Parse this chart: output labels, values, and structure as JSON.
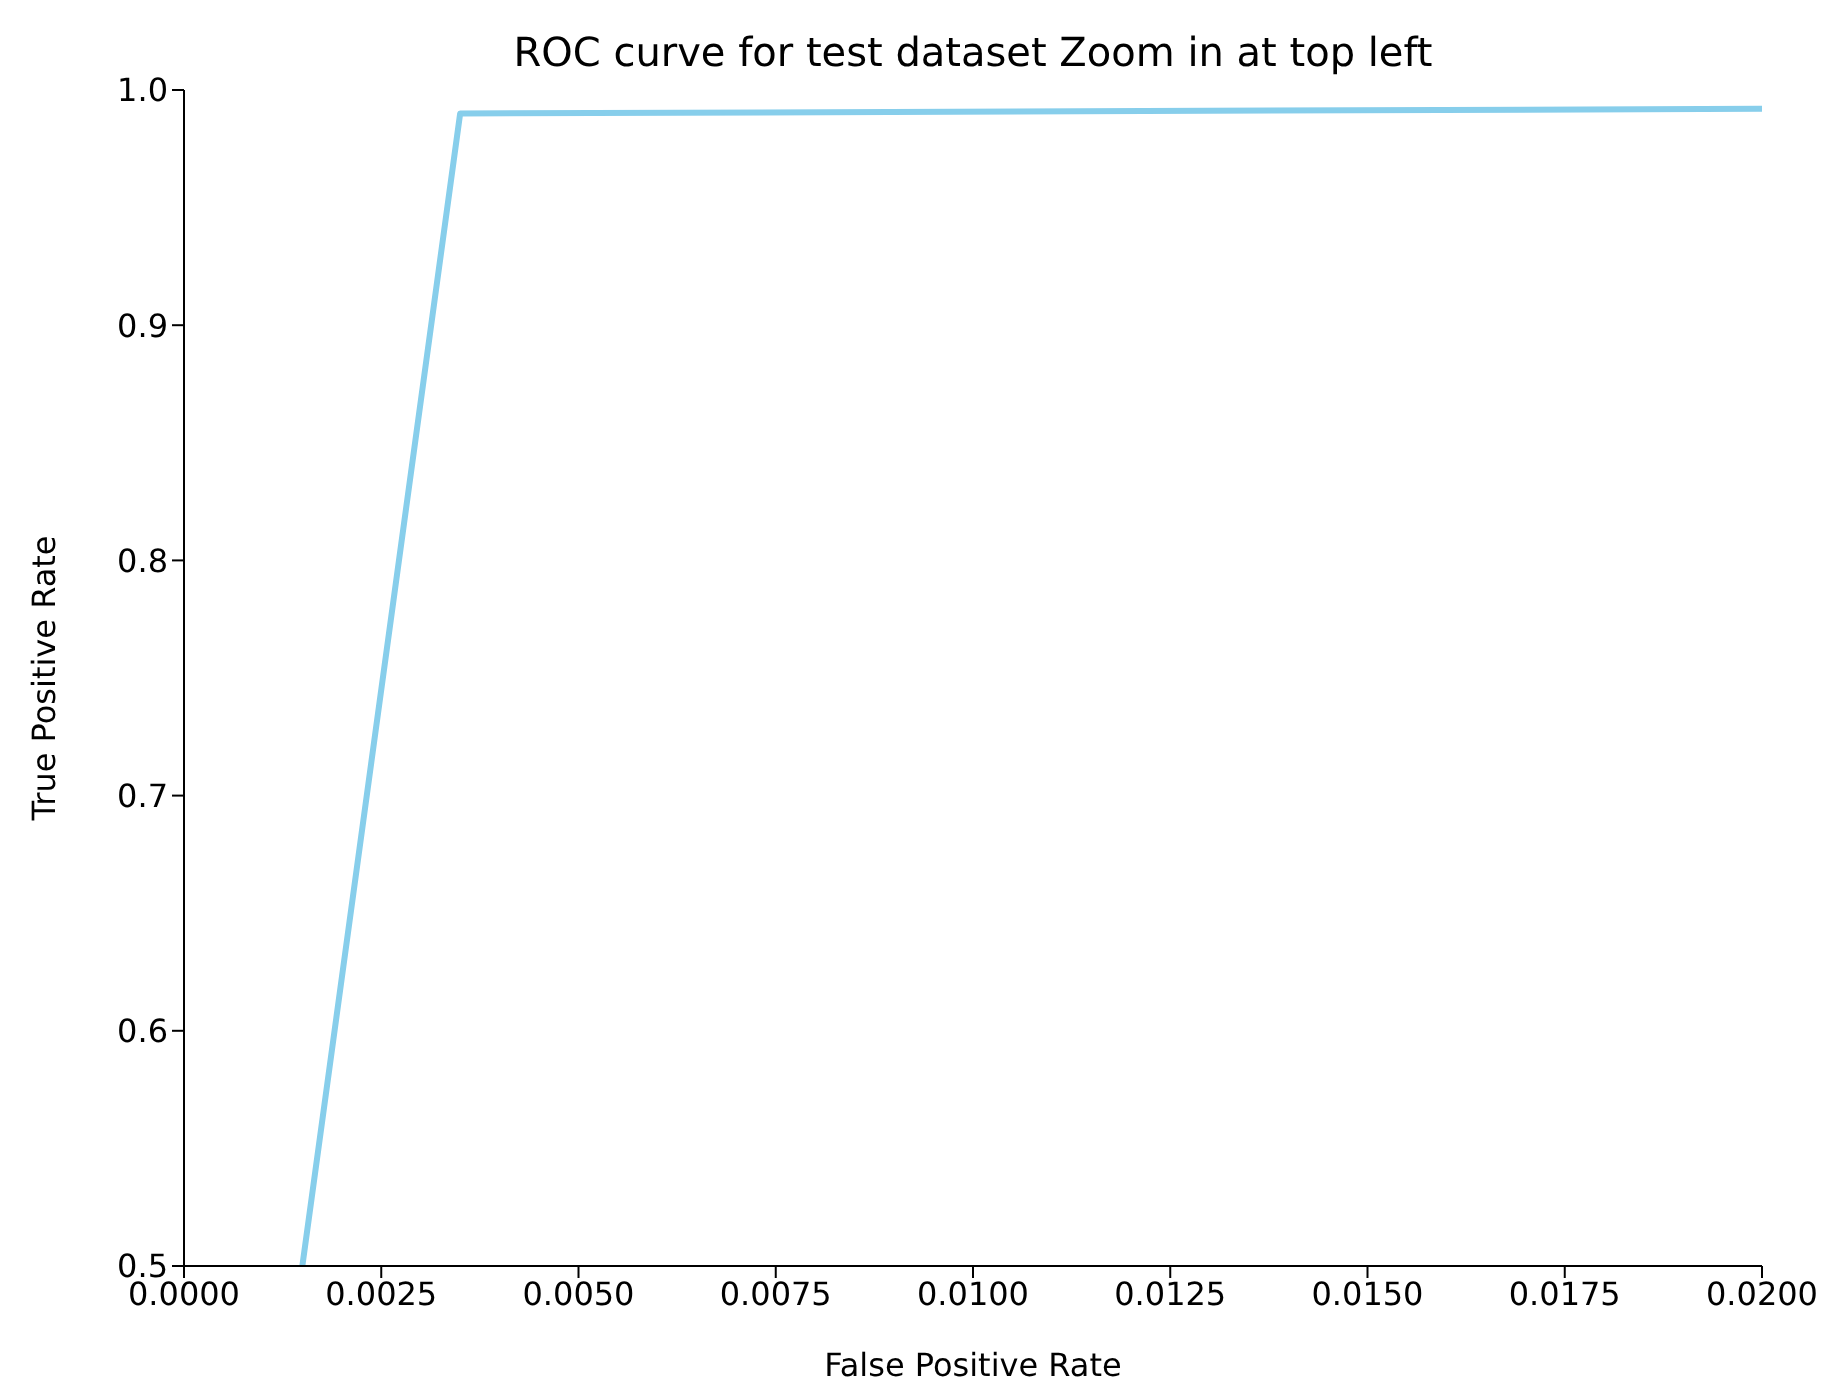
{
  "chart_data": {
    "type": "line",
    "title": "ROC curve for test dataset Zoom in at top left",
    "xlabel": "False Positive Rate",
    "ylabel": "True Positive Rate",
    "x": [
      0.0015,
      0.0035,
      0.02
    ],
    "series": [
      {
        "color": "#87ceeb",
        "values": [
          0.5,
          0.99,
          0.992
        ]
      }
    ],
    "xlim": [
      0,
      0.02
    ],
    "xticks": [
      {
        "value": 0,
        "label": "0.0000"
      },
      {
        "value": 0.0025,
        "label": "0.0025"
      },
      {
        "value": 0.005,
        "label": "0.0050"
      },
      {
        "value": 0.0075,
        "label": "0.0075"
      },
      {
        "value": 0.01,
        "label": "0.0100"
      },
      {
        "value": 0.0125,
        "label": "0.0125"
      },
      {
        "value": 0.015,
        "label": "0.0150"
      },
      {
        "value": 0.0175,
        "label": "0.0175"
      },
      {
        "value": 0.02,
        "label": "0.0200"
      }
    ],
    "ylim": [
      0.5,
      1
    ],
    "yticks": [
      {
        "value": 0.5,
        "label": "0.5"
      },
      {
        "value": 0.6,
        "label": "0.6"
      },
      {
        "value": 0.7,
        "label": "0.7"
      },
      {
        "value": 0.8,
        "label": "0.8"
      },
      {
        "value": 0.9,
        "label": "0.9"
      },
      {
        "value": 1,
        "label": "1.0"
      }
    ],
    "grid": false,
    "legend": false,
    "marker": "none",
    "line_style": "solid"
  }
}
